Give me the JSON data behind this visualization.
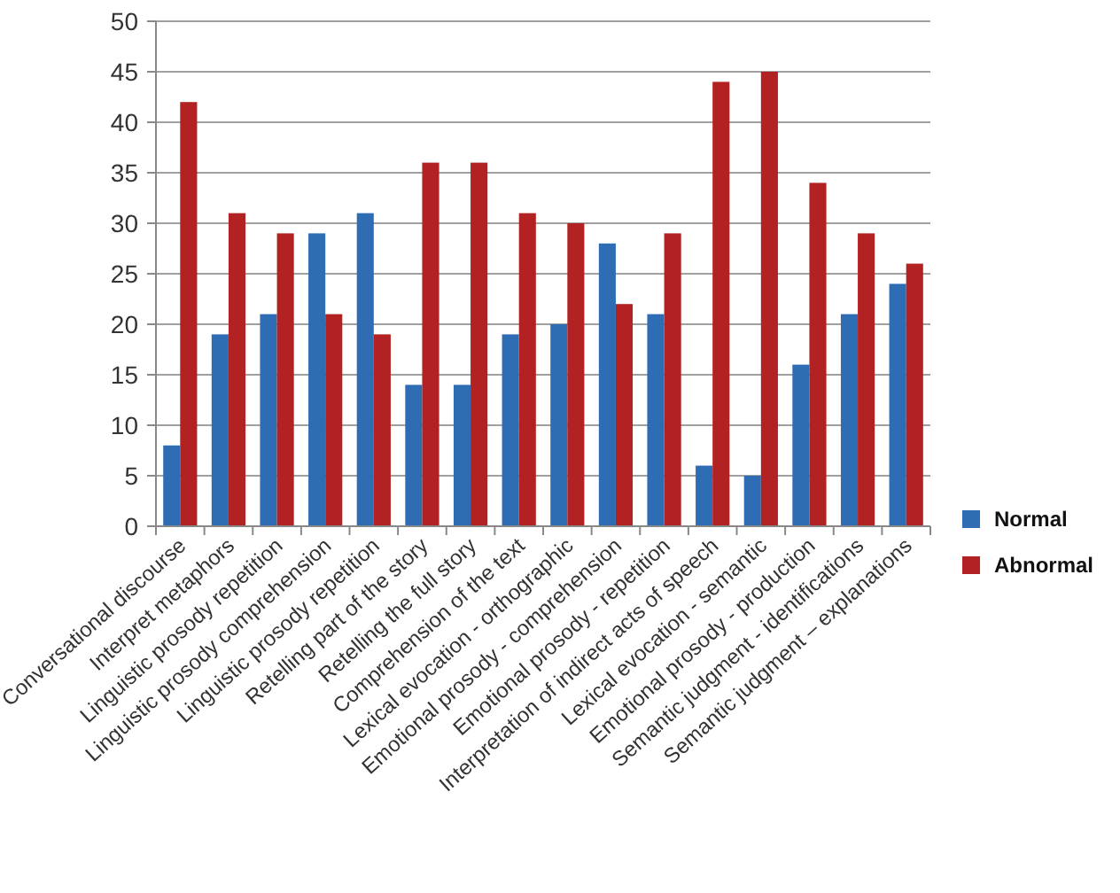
{
  "chart_data": {
    "type": "bar",
    "categories": [
      "Conversational discourse",
      "Interpret metaphors",
      "Linguistic prosody repetition",
      "Linguistic prosody comprehension",
      "Linguistic prosody repetition",
      "Retelling part of the story",
      "Retelling the full story",
      "Comprehension of the text",
      "Lexical evocation - orthographic",
      "Emotional prosody - comprehension",
      "Emotional prosody -  repetition",
      "Interpretation of indirect acts of speech",
      "Lexical evocation - semantic",
      "Emotional prosody - production",
      "Semantic judgment - identifications",
      "Semantic judgment – explanations"
    ],
    "series": [
      {
        "name": "Normal",
        "color": "#2e6db4",
        "values": [
          8,
          19,
          21,
          29,
          31,
          14,
          14,
          19,
          20,
          28,
          21,
          6,
          5,
          16,
          21,
          24
        ]
      },
      {
        "name": "Abnormal",
        "color": "#b22222",
        "values": [
          42,
          31,
          29,
          21,
          19,
          36,
          36,
          31,
          30,
          22,
          29,
          44,
          45,
          34,
          29,
          26
        ]
      }
    ],
    "ylim": [
      0,
      50
    ],
    "yticks": [
      0,
      5,
      10,
      15,
      20,
      25,
      30,
      35,
      40,
      45,
      50
    ],
    "grid": "y",
    "legend": "right"
  }
}
